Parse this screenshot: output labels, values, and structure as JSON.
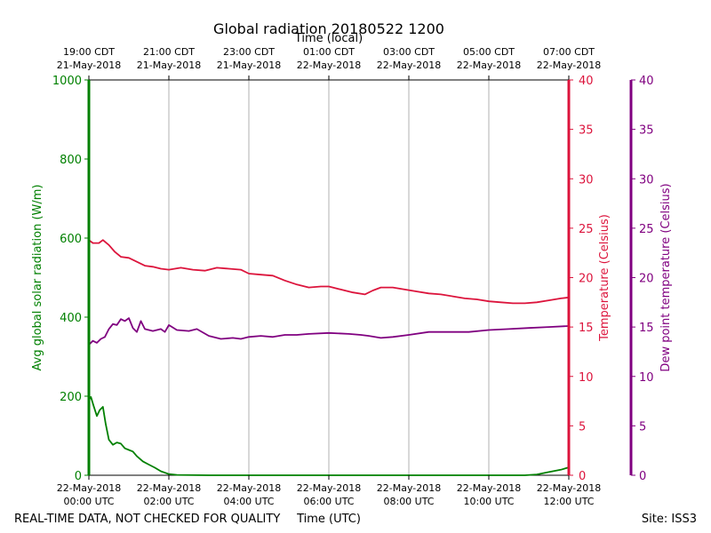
{
  "chart_data": {
    "type": "line",
    "title": "Global radiation 20180522 1200",
    "top_axis_label": "Time (local)",
    "xlabel": "Time (UTC)",
    "footer_left": "REAL-TIME DATA, NOT CHECKED FOR QUALITY",
    "footer_right": "Site: ISS3",
    "x_range_hours": [
      0,
      12
    ],
    "top_ticks": [
      {
        "h": 0,
        "time": "19:00 CDT",
        "date": "21-May-2018"
      },
      {
        "h": 2,
        "time": "21:00 CDT",
        "date": "21-May-2018"
      },
      {
        "h": 4,
        "time": "23:00 CDT",
        "date": "21-May-2018"
      },
      {
        "h": 6,
        "time": "01:00 CDT",
        "date": "22-May-2018"
      },
      {
        "h": 8,
        "time": "03:00 CDT",
        "date": "22-May-2018"
      },
      {
        "h": 10,
        "time": "05:00 CDT",
        "date": "22-May-2018"
      },
      {
        "h": 12,
        "time": "07:00 CDT",
        "date": "22-May-2018"
      }
    ],
    "bottom_ticks": [
      {
        "h": 0,
        "date": "22-May-2018",
        "time": "00:00 UTC"
      },
      {
        "h": 2,
        "date": "22-May-2018",
        "time": "02:00 UTC"
      },
      {
        "h": 4,
        "date": "22-May-2018",
        "time": "04:00 UTC"
      },
      {
        "h": 6,
        "date": "22-May-2018",
        "time": "06:00 UTC"
      },
      {
        "h": 8,
        "date": "22-May-2018",
        "time": "08:00 UTC"
      },
      {
        "h": 10,
        "date": "22-May-2018",
        "time": "10:00 UTC"
      },
      {
        "h": 12,
        "date": "22-May-2018",
        "time": "12:00 UTC"
      }
    ],
    "axes": {
      "radiation": {
        "label": "Avg global solar radiation (W/m)",
        "range": [
          0,
          1000
        ],
        "ticks": [
          0,
          200,
          400,
          600,
          800,
          1000
        ],
        "color": "#008000"
      },
      "temperature": {
        "label": "Temperature (Celsius)",
        "range": [
          0,
          40
        ],
        "ticks": [
          0,
          5,
          10,
          15,
          20,
          25,
          30,
          35,
          40
        ],
        "color": "#dc143c"
      },
      "dewpoint": {
        "label": "Dew point temperature (Celsius)",
        "range": [
          0,
          40
        ],
        "ticks": [
          0,
          5,
          10,
          15,
          20,
          25,
          30,
          35,
          40
        ],
        "color": "#800080"
      }
    },
    "series": [
      {
        "name": "Avg global solar radiation",
        "axis": "radiation",
        "color": "#008000",
        "points": [
          [
            0,
            190
          ],
          [
            0.05,
            198
          ],
          [
            0.12,
            175
          ],
          [
            0.2,
            150
          ],
          [
            0.27,
            165
          ],
          [
            0.35,
            173
          ],
          [
            0.42,
            130
          ],
          [
            0.5,
            90
          ],
          [
            0.6,
            77
          ],
          [
            0.7,
            83
          ],
          [
            0.8,
            80
          ],
          [
            0.9,
            68
          ],
          [
            1.0,
            64
          ],
          [
            1.1,
            60
          ],
          [
            1.2,
            48
          ],
          [
            1.35,
            35
          ],
          [
            1.5,
            27
          ],
          [
            1.65,
            19
          ],
          [
            1.8,
            10
          ],
          [
            2.0,
            3
          ],
          [
            2.2,
            1
          ],
          [
            3,
            0
          ],
          [
            6,
            0
          ],
          [
            9,
            0
          ],
          [
            10.9,
            0
          ],
          [
            11.2,
            2
          ],
          [
            11.5,
            8
          ],
          [
            11.8,
            14
          ],
          [
            12,
            20
          ]
        ]
      },
      {
        "name": "Temperature",
        "axis": "temperature",
        "color": "#dc143c",
        "points": [
          [
            0,
            23.8
          ],
          [
            0.1,
            23.5
          ],
          [
            0.25,
            23.5
          ],
          [
            0.35,
            23.8
          ],
          [
            0.5,
            23.3
          ],
          [
            0.65,
            22.6
          ],
          [
            0.8,
            22.1
          ],
          [
            1.0,
            22.0
          ],
          [
            1.2,
            21.6
          ],
          [
            1.4,
            21.2
          ],
          [
            1.6,
            21.1
          ],
          [
            1.8,
            20.9
          ],
          [
            2.0,
            20.8
          ],
          [
            2.3,
            21.0
          ],
          [
            2.6,
            20.8
          ],
          [
            2.9,
            20.7
          ],
          [
            3.2,
            21.0
          ],
          [
            3.5,
            20.9
          ],
          [
            3.8,
            20.8
          ],
          [
            4.0,
            20.4
          ],
          [
            4.3,
            20.3
          ],
          [
            4.6,
            20.2
          ],
          [
            4.9,
            19.7
          ],
          [
            5.2,
            19.3
          ],
          [
            5.5,
            19.0
          ],
          [
            5.8,
            19.1
          ],
          [
            6.0,
            19.1
          ],
          [
            6.3,
            18.8
          ],
          [
            6.6,
            18.5
          ],
          [
            6.9,
            18.3
          ],
          [
            7.1,
            18.7
          ],
          [
            7.3,
            19.0
          ],
          [
            7.6,
            19.0
          ],
          [
            7.9,
            18.8
          ],
          [
            8.2,
            18.6
          ],
          [
            8.5,
            18.4
          ],
          [
            8.8,
            18.3
          ],
          [
            9.1,
            18.1
          ],
          [
            9.4,
            17.9
          ],
          [
            9.7,
            17.8
          ],
          [
            10.0,
            17.6
          ],
          [
            10.3,
            17.5
          ],
          [
            10.6,
            17.4
          ],
          [
            10.9,
            17.4
          ],
          [
            11.2,
            17.5
          ],
          [
            11.5,
            17.7
          ],
          [
            11.8,
            17.9
          ],
          [
            12.0,
            18.0
          ]
        ]
      },
      {
        "name": "Dew point temperature",
        "axis": "dewpoint",
        "color": "#800080",
        "points": [
          [
            0,
            13.2
          ],
          [
            0.1,
            13.6
          ],
          [
            0.2,
            13.4
          ],
          [
            0.3,
            13.8
          ],
          [
            0.4,
            14.0
          ],
          [
            0.5,
            14.8
          ],
          [
            0.6,
            15.3
          ],
          [
            0.7,
            15.2
          ],
          [
            0.8,
            15.8
          ],
          [
            0.9,
            15.6
          ],
          [
            1.0,
            15.9
          ],
          [
            1.1,
            14.9
          ],
          [
            1.2,
            14.5
          ],
          [
            1.3,
            15.6
          ],
          [
            1.4,
            14.8
          ],
          [
            1.6,
            14.6
          ],
          [
            1.8,
            14.8
          ],
          [
            1.9,
            14.5
          ],
          [
            2.0,
            15.2
          ],
          [
            2.2,
            14.7
          ],
          [
            2.5,
            14.6
          ],
          [
            2.7,
            14.8
          ],
          [
            3.0,
            14.1
          ],
          [
            3.3,
            13.8
          ],
          [
            3.6,
            13.9
          ],
          [
            3.8,
            13.8
          ],
          [
            4.0,
            14.0
          ],
          [
            4.3,
            14.1
          ],
          [
            4.6,
            14.0
          ],
          [
            4.9,
            14.2
          ],
          [
            5.2,
            14.2
          ],
          [
            5.5,
            14.3
          ],
          [
            6.0,
            14.4
          ],
          [
            6.5,
            14.3
          ],
          [
            6.8,
            14.2
          ],
          [
            7.0,
            14.1
          ],
          [
            7.3,
            13.9
          ],
          [
            7.6,
            14.0
          ],
          [
            8.0,
            14.2
          ],
          [
            8.5,
            14.5
          ],
          [
            9.0,
            14.5
          ],
          [
            9.5,
            14.5
          ],
          [
            10.0,
            14.7
          ],
          [
            10.5,
            14.8
          ],
          [
            11.0,
            14.9
          ],
          [
            11.5,
            15.0
          ],
          [
            12.0,
            15.1
          ]
        ]
      }
    ]
  }
}
